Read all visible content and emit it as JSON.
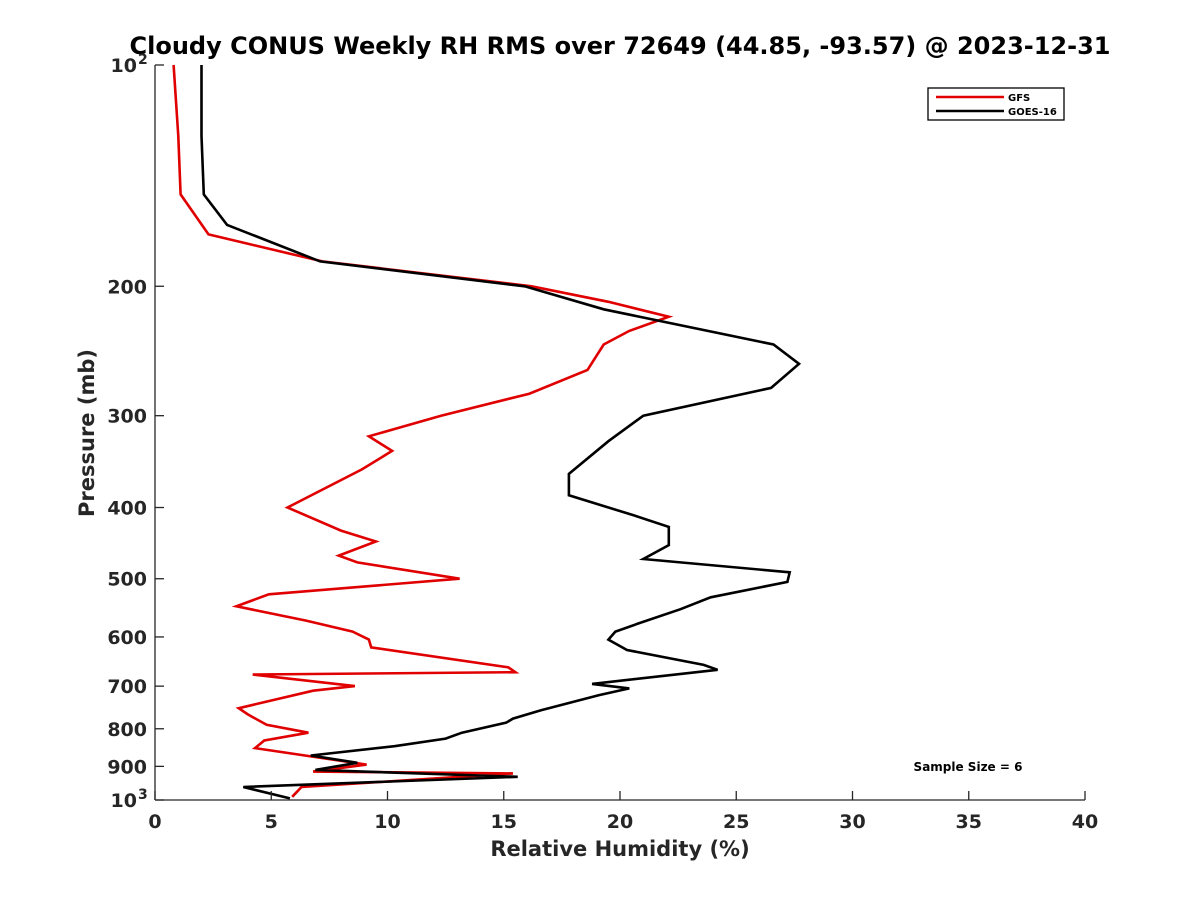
{
  "chart_data": {
    "type": "line",
    "title": "Cloudy CONUS Weekly RH RMS over 72649 (44.85, -93.57) @ 2023-12-31",
    "xlabel": "Relative Humidity (%)",
    "ylabel": "Pressure (mb)",
    "xlim": [
      0,
      40
    ],
    "ylim": [
      100,
      1000
    ],
    "y_scale": "log",
    "y_reversed": true,
    "x_ticks": [
      "0",
      "5",
      "10",
      "15",
      "20",
      "25",
      "30",
      "35",
      "40"
    ],
    "y_ticks": [
      {
        "value": 100,
        "label": "10",
        "exp": "2"
      },
      {
        "value": 200,
        "label": "200",
        "exp": ""
      },
      {
        "value": 300,
        "label": "300",
        "exp": ""
      },
      {
        "value": 400,
        "label": "400",
        "exp": ""
      },
      {
        "value": 500,
        "label": "500",
        "exp": ""
      },
      {
        "value": 600,
        "label": "600",
        "exp": ""
      },
      {
        "value": 700,
        "label": "700",
        "exp": ""
      },
      {
        "value": 800,
        "label": "800",
        "exp": ""
      },
      {
        "value": 900,
        "label": "900",
        "exp": ""
      },
      {
        "value": 1000,
        "label": "10",
        "exp": "3"
      }
    ],
    "legend_position": "top-right",
    "annotation": "Sample Size = 6",
    "series": [
      {
        "name": "GFS",
        "color": "#e00000",
        "points": [
          [
            0.8,
            100
          ],
          [
            1.0,
            125
          ],
          [
            1.1,
            150
          ],
          [
            2.3,
            170
          ],
          [
            7.2,
            185
          ],
          [
            16.2,
            200
          ],
          [
            19.5,
            210
          ],
          [
            22.1,
            220
          ],
          [
            20.4,
            230
          ],
          [
            19.3,
            240
          ],
          [
            18.6,
            260
          ],
          [
            16.1,
            280
          ],
          [
            12.3,
            300
          ],
          [
            9.2,
            320
          ],
          [
            10.2,
            335
          ],
          [
            8.9,
            355
          ],
          [
            5.7,
            400
          ],
          [
            8.0,
            430
          ],
          [
            9.5,
            445
          ],
          [
            7.9,
            465
          ],
          [
            8.7,
            475
          ],
          [
            13.1,
            500
          ],
          [
            4.9,
            525
          ],
          [
            3.5,
            545
          ],
          [
            6.5,
            570
          ],
          [
            8.5,
            590
          ],
          [
            9.2,
            605
          ],
          [
            9.3,
            620
          ],
          [
            15.2,
            660
          ],
          [
            15.5,
            670
          ],
          [
            4.2,
            675
          ],
          [
            8.6,
            700
          ],
          [
            6.8,
            710
          ],
          [
            3.6,
            750
          ],
          [
            4.0,
            765
          ],
          [
            4.8,
            790
          ],
          [
            6.6,
            810
          ],
          [
            4.7,
            830
          ],
          [
            4.3,
            850
          ],
          [
            9.1,
            895
          ],
          [
            6.8,
            915
          ],
          [
            15.4,
            920
          ],
          [
            6.3,
            960
          ],
          [
            5.9,
            990
          ]
        ]
      },
      {
        "name": "GOES-16",
        "color": "#000000",
        "points": [
          [
            2.0,
            100
          ],
          [
            2.0,
            125
          ],
          [
            2.1,
            150
          ],
          [
            3.1,
            165
          ],
          [
            7.1,
            185
          ],
          [
            15.9,
            200
          ],
          [
            19.3,
            215
          ],
          [
            26.6,
            240
          ],
          [
            27.7,
            255
          ],
          [
            26.5,
            275
          ],
          [
            21.0,
            300
          ],
          [
            19.5,
            325
          ],
          [
            17.8,
            360
          ],
          [
            17.8,
            385
          ],
          [
            20.6,
            410
          ],
          [
            22.1,
            425
          ],
          [
            22.1,
            450
          ],
          [
            21.0,
            470
          ],
          [
            27.3,
            490
          ],
          [
            27.2,
            505
          ],
          [
            23.9,
            530
          ],
          [
            22.6,
            550
          ],
          [
            20.8,
            575
          ],
          [
            19.8,
            590
          ],
          [
            19.5,
            605
          ],
          [
            20.3,
            625
          ],
          [
            23.6,
            655
          ],
          [
            24.2,
            665
          ],
          [
            18.8,
            695
          ],
          [
            20.4,
            705
          ],
          [
            19.1,
            720
          ],
          [
            16.6,
            755
          ],
          [
            15.4,
            775
          ],
          [
            15.1,
            785
          ],
          [
            13.2,
            810
          ],
          [
            12.5,
            825
          ],
          [
            10.3,
            845
          ],
          [
            6.7,
            870
          ],
          [
            8.7,
            890
          ],
          [
            6.9,
            910
          ],
          [
            15.6,
            930
          ],
          [
            3.8,
            960
          ],
          [
            5.8,
            995
          ]
        ]
      }
    ]
  }
}
